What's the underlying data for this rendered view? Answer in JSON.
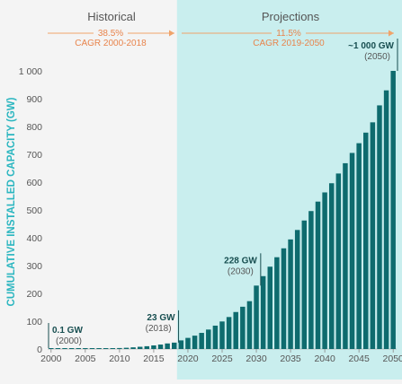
{
  "colors": {
    "background": "#f4f4f4",
    "projection_band": "#c9eeee",
    "bar": "#0e6b6e",
    "axis_label": "#2bb6c0",
    "arrow": "#f0a36a",
    "cagr_text": "#e8844c",
    "period_title": "#555555",
    "annotation": "#174e50",
    "annotation_year": "#555555",
    "tick": "#555555"
  },
  "periods": {
    "historical": {
      "title": "Historical",
      "cagr_value": "38.5%",
      "cagr_label": "CAGR 2000-2018"
    },
    "projections": {
      "title": "Projections",
      "cagr_value": "11.5%",
      "cagr_label": "CAGR 2019-2050"
    }
  },
  "chart_data": {
    "type": "bar",
    "ylabel": "CUMULATIVE INSTALLED CAPACITY (GW)",
    "xlabel": "",
    "ylim": [
      0,
      1000
    ],
    "yticks": [
      0,
      100,
      200,
      300,
      400,
      500,
      600,
      700,
      800,
      900,
      1000
    ],
    "ytick_labels": [
      "0",
      "100",
      "200",
      "300",
      "400",
      "500",
      "600",
      "700",
      "800",
      "900",
      "1 000"
    ],
    "xticks": [
      "2000",
      "2005",
      "2010",
      "2015",
      "2020",
      "2025",
      "2030",
      "2035",
      "2040",
      "2045",
      "2050"
    ],
    "projection_start_year": 2019,
    "years": [
      2000,
      2001,
      2002,
      2003,
      2004,
      2005,
      2006,
      2007,
      2008,
      2009,
      2010,
      2011,
      2012,
      2013,
      2014,
      2015,
      2016,
      2017,
      2018,
      2019,
      2020,
      2021,
      2022,
      2023,
      2024,
      2025,
      2026,
      2027,
      2028,
      2029,
      2030,
      2031,
      2032,
      2033,
      2034,
      2035,
      2036,
      2037,
      2038,
      2039,
      2040,
      2041,
      2042,
      2043,
      2044,
      2045,
      2046,
      2047,
      2048,
      2049,
      2050
    ],
    "values": [
      0.1,
      0.2,
      0.2,
      0.3,
      0.4,
      0.7,
      1,
      1.5,
      2,
      2.5,
      3.5,
      4.5,
      6,
      8,
      10,
      13,
      16,
      20,
      23,
      31,
      40,
      48,
      58,
      70,
      84,
      99,
      115,
      133,
      152,
      172,
      228,
      262,
      296,
      330,
      362,
      394,
      428,
      462,
      496,
      530,
      563,
      596,
      631,
      668,
      705,
      740,
      778,
      815,
      876,
      930,
      1000
    ],
    "annotations": [
      {
        "year": 2000,
        "value_label": "0.1 GW",
        "year_label": "(2000)"
      },
      {
        "year": 2018,
        "value_label": "23 GW",
        "year_label": "(2018)"
      },
      {
        "year": 2030,
        "value_label": "228 GW",
        "year_label": "(2030)"
      },
      {
        "year": 2050,
        "value_label": "~1 000 GW",
        "year_label": "(2050)"
      }
    ]
  }
}
